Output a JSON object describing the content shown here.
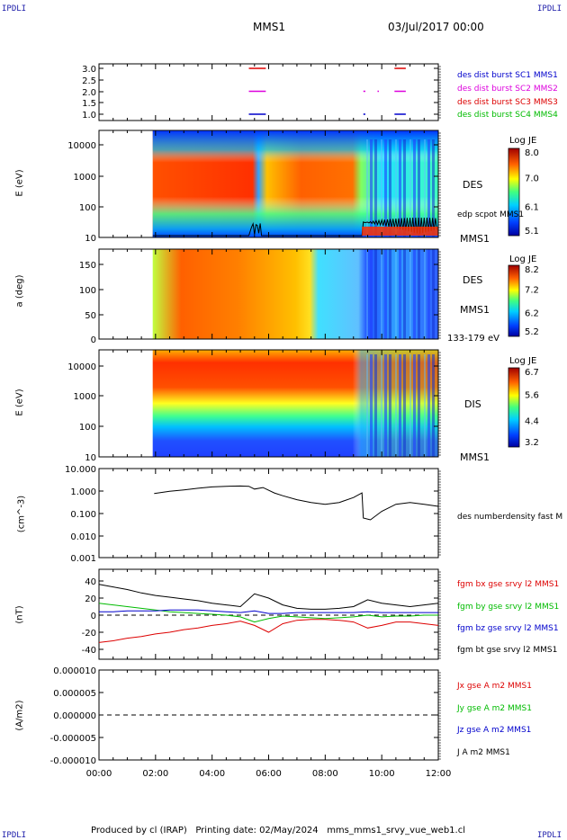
{
  "corners": {
    "tl": "IPDLI",
    "tr": "IPDLI",
    "bl": "IPDLI",
    "br": "IPDLI"
  },
  "header": {
    "mission": "MMS1",
    "date": "03/Jul/2017 00:00"
  },
  "footer": "Produced by cl (IRAP)   Printing date: 02/May/2024   mms_mms1_srvy_vue_web1.cl",
  "colors": {
    "black": "#000000",
    "red": "#dd0000",
    "green": "#00bb00",
    "blue": "#0000cc",
    "magenta": "#dd00dd"
  },
  "chart_data": [
    {
      "type": "scatter",
      "panel": "burst availability",
      "ylim": [
        0.8,
        3.2
      ],
      "yticks": [
        "3.0",
        "2.5",
        "2.0",
        "1.5",
        "1.0"
      ],
      "legend": [
        {
          "name": "des dist burst SC1 MMS1",
          "color": "#0000cc"
        },
        {
          "name": "des dist burst SC2 MMS2",
          "color": "#dd00dd"
        },
        {
          "name": "des dist burst SC3 MMS3",
          "color": "#dd0000"
        },
        {
          "name": "des dist burst SC4 MMS4",
          "color": "#00bb00"
        }
      ],
      "segments": [
        {
          "y": 3.0,
          "color": "#dd0000",
          "x": [
            [
              5.3,
              5.9
            ],
            [
              10.45,
              10.85
            ]
          ]
        },
        {
          "y": 2.0,
          "color": "#dd00dd",
          "x": [
            [
              5.3,
              5.9
            ],
            [
              10.45,
              10.85
            ],
            [
              9.35,
              9.42
            ],
            [
              9.85,
              9.9
            ]
          ]
        },
        {
          "y": 1.0,
          "color": "#0000cc",
          "x": [
            [
              5.3,
              5.9
            ],
            [
              10.45,
              10.85
            ],
            [
              9.35,
              9.42
            ]
          ]
        }
      ]
    },
    {
      "type": "heatmap",
      "panel": "DES energy spectrogram",
      "ylabel": "E (eV)",
      "yscale": "log",
      "yticks": [
        "10000",
        "1000",
        "100",
        "10"
      ],
      "instrument": "DES",
      "spacecraft": "MMS1",
      "overlay": "edp scpot MMS1",
      "colorbar": {
        "title": "Log JE",
        "ticks": [
          "8.0",
          "7.0",
          "6.1",
          "5.1"
        ]
      }
    },
    {
      "type": "heatmap",
      "panel": "DES pitch angle",
      "ylabel": "a (deg)",
      "yticks": [
        "150",
        "100",
        "50",
        "0"
      ],
      "instrument": "DES",
      "spacecraft": "MMS1",
      "energy_range": "133-179 eV",
      "colorbar": {
        "title": "Log JE",
        "ticks": [
          "8.2",
          "7.2",
          "6.2",
          "5.2"
        ]
      }
    },
    {
      "type": "heatmap",
      "panel": "DIS energy spectrogram",
      "ylabel": "E (eV)",
      "yscale": "log",
      "yticks": [
        "10000",
        "1000",
        "100",
        "10"
      ],
      "instrument": "DIS",
      "spacecraft": "MMS1",
      "colorbar": {
        "title": "Log JE",
        "ticks": [
          "6.7",
          "5.6",
          "4.4",
          "3.2"
        ]
      }
    },
    {
      "type": "line",
      "panel": "density",
      "ylabel": "(cm^-3)",
      "yscale": "log",
      "ylim": [
        0.001,
        10
      ],
      "yticks": [
        "10.000",
        "1.000",
        "0.100",
        "0.010",
        "0.001"
      ],
      "series": [
        {
          "name": "des numberdensity fast M",
          "color": "#000000",
          "x": [
            1.95,
            2.5,
            3.0,
            3.5,
            4.0,
            4.5,
            5.0,
            5.3,
            5.5,
            5.8,
            6.2,
            6.5,
            7.0,
            7.5,
            8.0,
            8.5,
            9.0,
            9.3,
            9.35,
            9.6,
            10.0,
            10.5,
            11.0,
            11.5,
            12.0
          ],
          "y": [
            0.75,
            0.95,
            1.1,
            1.3,
            1.5,
            1.6,
            1.65,
            1.6,
            1.2,
            1.4,
            0.8,
            0.6,
            0.4,
            0.3,
            0.25,
            0.3,
            0.5,
            0.8,
            0.06,
            0.05,
            0.12,
            0.25,
            0.3,
            0.25,
            0.2
          ]
        }
      ]
    },
    {
      "type": "line",
      "panel": "magnetic field",
      "ylabel": "(nT)",
      "ylim": [
        -50,
        50
      ],
      "yticks": [
        "40",
        "20",
        "0",
        "-20",
        "-40"
      ],
      "series": [
        {
          "name": "fgm bx gse srvy l2 MMS1",
          "color": "#dd0000",
          "x": [
            0,
            0.5,
            1,
            1.5,
            2,
            2.5,
            3,
            3.5,
            4,
            4.5,
            5,
            5.5,
            6,
            6.5,
            7,
            7.5,
            8,
            8.5,
            9,
            9.5,
            10,
            10.5,
            11,
            11.5,
            12
          ],
          "y": [
            -32,
            -30,
            -27,
            -25,
            -22,
            -20,
            -17,
            -15,
            -12,
            -10,
            -7,
            -12,
            -20,
            -10,
            -6,
            -5,
            -5,
            -6,
            -8,
            -15,
            -12,
            -8,
            -8,
            -10,
            -12
          ]
        },
        {
          "name": "fgm by gse srvy l2 MMS1",
          "color": "#00bb00",
          "x": [
            0,
            0.5,
            1,
            1.5,
            2,
            2.5,
            3,
            3.5,
            4,
            4.5,
            5,
            5.5,
            6,
            6.5,
            7,
            7.5,
            8,
            8.5,
            9,
            9.5,
            10,
            10.5,
            11,
            11.5,
            12
          ],
          "y": [
            14,
            12,
            10,
            8,
            6,
            4,
            3,
            2,
            1,
            0,
            -2,
            -8,
            -4,
            -1,
            -2,
            -3,
            -4,
            -3,
            -2,
            0,
            -2,
            -1,
            -1,
            0,
            0
          ]
        },
        {
          "name": "fgm bz gse srvy l2 MMS1",
          "color": "#0000cc",
          "x": [
            0,
            0.5,
            1,
            1.5,
            2,
            2.5,
            3,
            3.5,
            4,
            4.5,
            5,
            5.5,
            6,
            6.5,
            7,
            7.5,
            8,
            8.5,
            9,
            9.5,
            10,
            10.5,
            11,
            11.5,
            12
          ],
          "y": [
            4,
            4,
            5,
            5,
            5,
            6,
            6,
            6,
            5,
            4,
            3,
            5,
            2,
            2,
            3,
            3,
            3,
            3,
            3,
            4,
            3,
            3,
            3,
            3,
            3
          ]
        },
        {
          "name": "fgm bt gse srvy l2 MMS1",
          "color": "#000000",
          "x": [
            0,
            0.5,
            1,
            1.5,
            2,
            2.5,
            3,
            3.5,
            4,
            4.5,
            5,
            5.5,
            6,
            6.5,
            7,
            7.5,
            8,
            8.5,
            9,
            9.5,
            10,
            10.5,
            11,
            11.5,
            12
          ],
          "y": [
            36,
            33,
            30,
            26,
            23,
            21,
            19,
            17,
            14,
            12,
            10,
            25,
            20,
            12,
            8,
            7,
            7,
            8,
            10,
            18,
            14,
            12,
            10,
            12,
            14
          ]
        }
      ]
    },
    {
      "type": "line",
      "panel": "current density",
      "ylabel": "(A/m2)",
      "ylim": [
        -1e-05,
        1e-05
      ],
      "yticks": [
        "0.000010",
        "0.000005",
        "0.000000",
        "-0.000005",
        "-0.000010"
      ],
      "series": [
        {
          "name": "Jx gse A m2 MMS1",
          "color": "#dd0000"
        },
        {
          "name": "Jy gse A m2 MMS1",
          "color": "#00bb00"
        },
        {
          "name": "Jz gse A m2 MMS1",
          "color": "#0000cc"
        },
        {
          "name": "J A m2 MMS1",
          "color": "#000000"
        }
      ]
    }
  ],
  "time_axis": {
    "ticks": [
      "00:00",
      "02:00",
      "04:00",
      "06:00",
      "08:00",
      "10:00",
      "12:00"
    ],
    "range_hours": [
      0,
      12
    ]
  }
}
